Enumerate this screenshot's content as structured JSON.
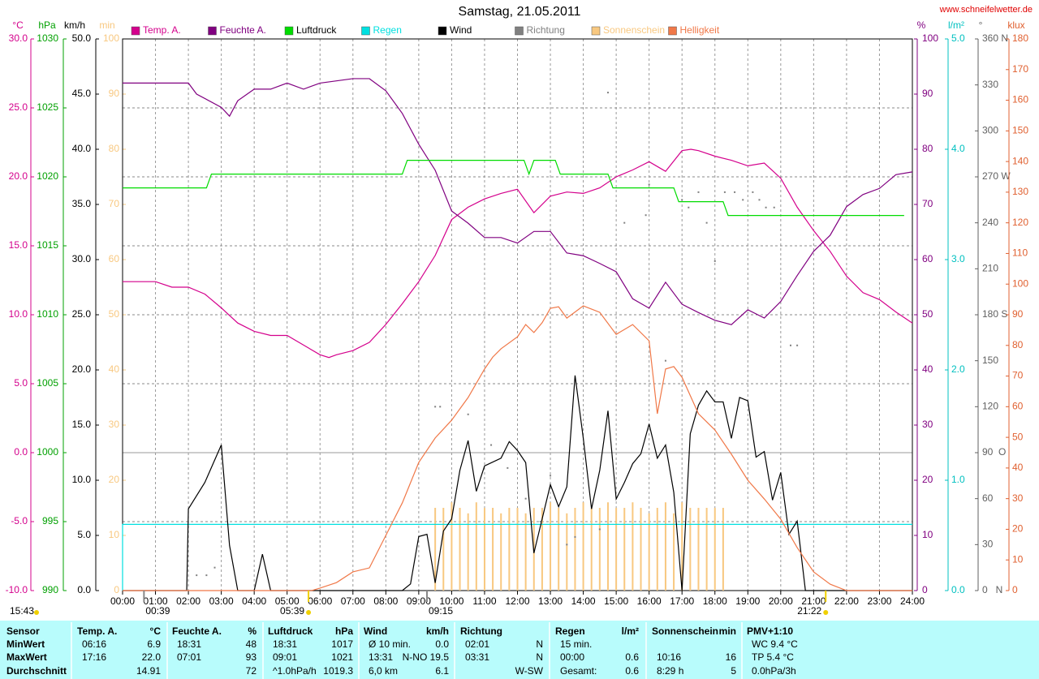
{
  "chart_data": {
    "type": "line",
    "title": "Samstag, 21.05.2011",
    "source": "www.schneifelwetter.de",
    "xlim": [
      0,
      24
    ],
    "xticks": [
      {
        "value": 0,
        "label": "00:00"
      },
      {
        "value": 1,
        "label": "01:00"
      },
      {
        "value": 2,
        "label": "02:00"
      },
      {
        "value": 3,
        "label": "03:00"
      },
      {
        "value": 4,
        "label": "04:00"
      },
      {
        "value": 5,
        "label": "05:00"
      },
      {
        "value": 6,
        "label": "06:00"
      },
      {
        "value": 7,
        "label": "07:00"
      },
      {
        "value": 8,
        "label": "08:00"
      },
      {
        "value": 9,
        "label": "09:00"
      },
      {
        "value": 10,
        "label": "10:00"
      },
      {
        "value": 11,
        "label": "11:00"
      },
      {
        "value": 12,
        "label": "12:00"
      },
      {
        "value": 13,
        "label": "13:00"
      },
      {
        "value": 14,
        "label": "14:00"
      },
      {
        "value": 15,
        "label": "15:00"
      },
      {
        "value": 16,
        "label": "16:00"
      },
      {
        "value": 17,
        "label": "17:00"
      },
      {
        "value": 18,
        "label": "18:00"
      },
      {
        "value": 19,
        "label": "19:00"
      },
      {
        "value": 20,
        "label": "20:00"
      },
      {
        "value": 21,
        "label": "21:00"
      },
      {
        "value": 22,
        "label": "22:00"
      },
      {
        "value": 23,
        "label": "23:00"
      },
      {
        "value": 24,
        "label": "24:00"
      }
    ],
    "grid": true,
    "axes": [
      {
        "label": "°C",
        "color": "#d4008c",
        "lim": [
          -10,
          30
        ],
        "grid": true,
        "ticks": [
          {
            "value": -10,
            "label": "-10.0"
          },
          {
            "value": -5,
            "label": "-5.0"
          },
          {
            "value": 0,
            "label": "0.0"
          },
          {
            "value": 5,
            "label": "5.0"
          },
          {
            "value": 10,
            "label": "10.0"
          },
          {
            "value": 15,
            "label": "15.0"
          },
          {
            "value": 20,
            "label": "20.0"
          },
          {
            "value": 25,
            "label": "25.0"
          },
          {
            "value": 30,
            "label": "30.0"
          }
        ]
      },
      {
        "label": "hPa",
        "color": "#00a000",
        "lim": [
          990,
          1030
        ],
        "ticks": [
          990,
          995,
          1000,
          1005,
          1010,
          1015,
          1020,
          1025,
          1030
        ]
      },
      {
        "label": "km/h",
        "color": "#000000",
        "lim": [
          0,
          50
        ],
        "ticks": [
          {
            "value": 0,
            "label": "0.0"
          },
          {
            "value": 5,
            "label": "5.0"
          },
          {
            "value": 10,
            "label": "10.0"
          },
          {
            "value": 15,
            "label": "15.0"
          },
          {
            "value": 20,
            "label": "20.0"
          },
          {
            "value": 25,
            "label": "25.0"
          },
          {
            "value": 30,
            "label": "30.0"
          },
          {
            "value": 35,
            "label": "35.0"
          },
          {
            "value": 40,
            "label": "40.0"
          },
          {
            "value": 45,
            "label": "45.0"
          },
          {
            "value": 50,
            "label": "50.0"
          }
        ]
      },
      {
        "label": "min",
        "color": "#f8c880",
        "lim": [
          0,
          100
        ],
        "ticks": [
          0,
          10,
          20,
          30,
          40,
          50,
          60,
          70,
          80,
          90,
          100
        ]
      },
      {
        "label": "%",
        "color": "#800080",
        "lim": [
          0,
          100
        ],
        "ticks": [
          0,
          10,
          20,
          30,
          40,
          50,
          60,
          70,
          80,
          90,
          100
        ]
      },
      {
        "label": "l/m²",
        "color": "#00c0c0",
        "lim": [
          0,
          5
        ],
        "ticks": [
          {
            "value": 0,
            "label": "0.0"
          },
          {
            "value": 1,
            "label": "1.0"
          },
          {
            "value": 2,
            "label": "2.0"
          },
          {
            "value": 3,
            "label": "3.0"
          },
          {
            "value": 4,
            "label": "4.0"
          },
          {
            "value": 5,
            "label": "5.0"
          }
        ]
      },
      {
        "label": "°",
        "color": "#606060",
        "lim": [
          0,
          360
        ],
        "ticks": [
          {
            "value": 0,
            "label": "0   N"
          },
          30,
          60,
          {
            "value": 90,
            "label": "90  O"
          },
          120,
          150,
          {
            "value": 180,
            "label": "180 S"
          },
          210,
          240,
          {
            "value": 270,
            "label": "270 W"
          },
          300,
          330,
          {
            "value": 360,
            "label": "360 N"
          }
        ]
      },
      {
        "label": "klux",
        "color": "#e06030",
        "lim": [
          0,
          180
        ],
        "ticks": [
          0,
          10,
          20,
          30,
          40,
          50,
          60,
          70,
          80,
          90,
          100,
          110,
          120,
          130,
          140,
          150,
          160,
          170,
          180
        ]
      }
    ],
    "series": [
      {
        "name": "Temp. A.",
        "type": "line",
        "axis": 0,
        "color": "#d4008c",
        "x": [
          0,
          1,
          1.5,
          2,
          2.5,
          3,
          3.5,
          4,
          4.5,
          5,
          5.5,
          6,
          6.27,
          6.5,
          7,
          7.5,
          8,
          8.5,
          9,
          9.5,
          10,
          10.5,
          11,
          11.5,
          12,
          12.5,
          13,
          13.5,
          14,
          14.5,
          15,
          15.5,
          16,
          16.5,
          17,
          17.27,
          17.5,
          18,
          18.5,
          19,
          19.5,
          20,
          20.5,
          21,
          21.5,
          22,
          22.5,
          23,
          23.5,
          24
        ],
        "values": [
          12.4,
          12.4,
          12.0,
          12.0,
          11.5,
          10.5,
          9.4,
          8.8,
          8.5,
          8.5,
          7.8,
          7.1,
          6.9,
          7.1,
          7.4,
          8.0,
          9.3,
          10.8,
          12.4,
          14.3,
          16.9,
          17.8,
          18.4,
          18.8,
          19.1,
          17.4,
          18.6,
          18.9,
          18.8,
          19.2,
          20.0,
          20.5,
          21.1,
          20.4,
          21.9,
          22.0,
          21.9,
          21.5,
          21.2,
          20.8,
          21.0,
          19.9,
          17.8,
          16.1,
          14.6,
          12.8,
          11.6,
          11.1,
          10.2,
          9.4
        ]
      },
      {
        "name": "Feuchte A.",
        "type": "line",
        "axis": 4,
        "color": "#800080",
        "x": [
          0,
          2,
          2.25,
          3,
          3.25,
          3.5,
          4,
          4.5,
          5,
          5.5,
          6,
          7,
          7.5,
          8,
          8.5,
          9,
          9.5,
          10,
          10.5,
          11,
          11.5,
          12,
          12.5,
          13,
          13.5,
          14,
          14.5,
          15,
          15.5,
          16,
          16.5,
          17,
          17.5,
          18,
          18.5,
          19,
          19.5,
          20,
          20.5,
          21,
          21.5,
          22,
          22.5,
          23,
          23.5,
          24
        ],
        "values": [
          92,
          92,
          90,
          87.6,
          86,
          88.8,
          90.9,
          90.9,
          92,
          90.9,
          92,
          92.8,
          92.8,
          90.6,
          86.5,
          80.9,
          76.2,
          68.8,
          66.6,
          64,
          64,
          63,
          65.1,
          65.1,
          61.2,
          60.7,
          59.3,
          57.8,
          52.9,
          51.2,
          55.9,
          51.9,
          50.4,
          49,
          48.2,
          50.9,
          49.4,
          52.4,
          57.1,
          61.5,
          64.4,
          69.6,
          71.8,
          72.9,
          75.4,
          75.9
        ]
      },
      {
        "name": "Luftdruck",
        "type": "line",
        "axis": 1,
        "color": "#00dc00",
        "x": [
          0,
          2.55,
          2.7,
          8.5,
          8.65,
          12.2,
          12.35,
          12.5,
          13.15,
          13.3,
          14.75,
          14.9,
          16.75,
          16.9,
          18.25,
          18.4,
          23.75
        ],
        "values": [
          1019.2,
          1019.2,
          1020.2,
          1020.2,
          1021.2,
          1021.2,
          1020.2,
          1021.2,
          1021.2,
          1020.2,
          1020.2,
          1019.2,
          1019.2,
          1018.2,
          1018.2,
          1017.2,
          1017.2
        ]
      },
      {
        "name": "Regen",
        "type": "line",
        "axis": 5,
        "color": "#00e0e0",
        "x": [
          0,
          0,
          24
        ],
        "values": [
          0,
          0.6,
          0.6
        ]
      },
      {
        "name": "Wind",
        "type": "line",
        "axis": 2,
        "color": "#000000",
        "x": [
          0,
          1.95,
          2,
          2.5,
          3,
          3.25,
          3.5,
          4,
          4.25,
          4.5,
          8.5,
          8.75,
          9,
          9.25,
          9.5,
          9.75,
          10,
          10.25,
          10.5,
          10.75,
          11,
          11.5,
          11.75,
          12,
          12.25,
          12.5,
          12.75,
          13,
          13.25,
          13.5,
          13.75,
          14,
          14.25,
          14.5,
          14.75,
          15,
          15.25,
          15.5,
          15.75,
          16,
          16.25,
          16.5,
          16.75,
          17,
          17.25,
          17.5,
          17.75,
          18,
          18.25,
          18.5,
          18.75,
          19,
          19.25,
          19.5,
          19.75,
          20,
          20.25,
          20.5,
          20.75,
          24
        ],
        "values": [
          0,
          0,
          7.4,
          9.8,
          13.2,
          4.1,
          0,
          0,
          3.3,
          0,
          0,
          0.6,
          4.9,
          5.1,
          0.7,
          5.4,
          6.5,
          10.9,
          13.6,
          9.0,
          11.3,
          12.0,
          13.5,
          12.7,
          11.6,
          3.4,
          6.5,
          9.6,
          7.6,
          9.4,
          19.5,
          13.8,
          7.4,
          10.9,
          16.3,
          8.3,
          9.8,
          11.5,
          12.4,
          15.1,
          12,
          13.2,
          8.9,
          0,
          14.2,
          16.8,
          18.1,
          17.1,
          17.1,
          13.8,
          17.5,
          17.2,
          12.1,
          12.6,
          8.2,
          10.7,
          5.1,
          6.3,
          0,
          0
        ]
      },
      {
        "name": "Richtung",
        "type": "scatter",
        "axis": 6,
        "color": "#808080",
        "x": [
          2.25,
          2.55,
          2.8,
          9.5,
          9.65,
          10.5,
          11.2,
          11.7,
          12.25,
          12.7,
          13.0,
          13.5,
          13.75,
          14.5,
          14.75,
          15.25,
          15.9,
          16.0,
          16.5,
          17.0,
          17.2,
          17.5,
          17.75,
          18.0,
          18.3,
          18.6,
          18.85,
          19.15,
          19.35,
          19.55,
          19.8,
          20.3,
          20.5
        ],
        "values": [
          10,
          10,
          15,
          120,
          120,
          115,
          95,
          80,
          60,
          45,
          75,
          30,
          35,
          40,
          325,
          240,
          245,
          265,
          150,
          255,
          250,
          260,
          240,
          215,
          260,
          260,
          255,
          260,
          255,
          250,
          250,
          160,
          160
        ]
      },
      {
        "name": "Sonnenschein",
        "type": "bar",
        "axis": 3,
        "color": "#f8c880",
        "x": [
          9.5,
          9.75,
          10,
          10.25,
          10.5,
          10.75,
          11,
          11.25,
          11.5,
          11.75,
          12,
          12.25,
          12.5,
          12.75,
          13,
          13.25,
          13.5,
          13.75,
          14,
          14.25,
          14.5,
          14.75,
          15,
          15.25,
          15.5,
          15.75,
          16,
          16.25,
          16.5,
          16.75,
          17,
          17.25,
          17.5,
          17.75,
          18,
          18.25
        ],
        "values": [
          15,
          15,
          16,
          15,
          14,
          16,
          15,
          15,
          14,
          15,
          15,
          14,
          15,
          15,
          16,
          15,
          14,
          15,
          16,
          15,
          15,
          16,
          15,
          15,
          16,
          15,
          14,
          15,
          16,
          14,
          16,
          15,
          15,
          15,
          15,
          15
        ]
      },
      {
        "name": "Helligkeit",
        "type": "line",
        "axis": 7,
        "color": "#f07848",
        "x": [
          0,
          5.75,
          6,
          6.5,
          7,
          7.5,
          8,
          8.5,
          9,
          9.5,
          10,
          10.5,
          11,
          11.25,
          11.5,
          12,
          12.25,
          12.5,
          12.75,
          13,
          13.25,
          13.5,
          14,
          14.5,
          15,
          15.5,
          16,
          16.25,
          16.5,
          16.75,
          17,
          17.5,
          18,
          18.5,
          19,
          19.5,
          20,
          20.5,
          21,
          21.5,
          22,
          24
        ],
        "values": [
          0,
          0,
          0.8,
          2.6,
          6.1,
          7.4,
          18,
          28.6,
          41.8,
          49.8,
          55.6,
          63,
          72.3,
          76.2,
          78.9,
          82.8,
          86.8,
          84.2,
          87.4,
          92.1,
          92.6,
          88.9,
          92.9,
          90.8,
          83.6,
          86.8,
          81.5,
          57.7,
          72.3,
          73.1,
          69.6,
          57.7,
          52.4,
          44.5,
          36,
          29.9,
          23.3,
          14,
          6.1,
          2.1,
          0,
          0
        ]
      }
    ],
    "annotations": [
      "15:43",
      "00:39",
      "05:39",
      "09:15",
      "21:22"
    ]
  },
  "table": {
    "columns": [
      {
        "header": "Sensor",
        "rows": [
          {
            "l": "MinWert"
          },
          {
            "l": "MaxWert"
          },
          {
            "l": "Durchschnitt"
          }
        ]
      },
      {
        "header": "Temp. A.",
        "unit": "°C",
        "rows": [
          {
            "l": "06:16",
            "r": "6.9"
          },
          {
            "l": "17:16",
            "r": "22.0"
          },
          {
            "r": "14.91"
          }
        ]
      },
      {
        "header": "Feuchte A.",
        "unit": "%",
        "rows": [
          {
            "l": "18:31",
            "r": "48"
          },
          {
            "l": "07:01",
            "r": "93"
          },
          {
            "r": "72"
          }
        ]
      },
      {
        "header": "Luftdruck",
        "unit": "hPa",
        "rows": [
          {
            "l": "18:31",
            "r": "1017"
          },
          {
            "l": "09:01",
            "r": "1021"
          },
          {
            "l": "^1.0hPa/h",
            "r": "1019.3"
          }
        ]
      },
      {
        "header": "Wind",
        "unit": "km/h",
        "rows": [
          {
            "l": "Ø 10 min.",
            "r": "0.0"
          },
          {
            "l": "13:31",
            "r": "N-NO 19.5"
          },
          {
            "l": "6,0 km",
            "r": "6.1"
          }
        ]
      },
      {
        "header": "Richtung",
        "rows": [
          {
            "l": "02:01",
            "r": "N"
          },
          {
            "l": "03:31",
            "r": "N"
          },
          {
            "r": "W-SW"
          }
        ]
      },
      {
        "header": "Regen",
        "unit": "l/m²",
        "rows": [
          {
            "l": "15 min."
          },
          {
            "l": "00:00",
            "r": "0.6"
          },
          {
            "l": "Gesamt:",
            "r": "0.6"
          }
        ]
      },
      {
        "header": "Sonnenschein",
        "unit": "min",
        "rows": [
          null,
          {
            "l": "10:16",
            "r": "16"
          },
          {
            "l": "8:29 h",
            "r": "5"
          }
        ]
      },
      {
        "header": "PMV+1:10",
        "rows": [
          {
            "l": "WC 9.4 °C"
          },
          {
            "l": "TP 5.4 °C"
          },
          {
            "l": "0.0hPa/3h"
          }
        ]
      }
    ]
  }
}
